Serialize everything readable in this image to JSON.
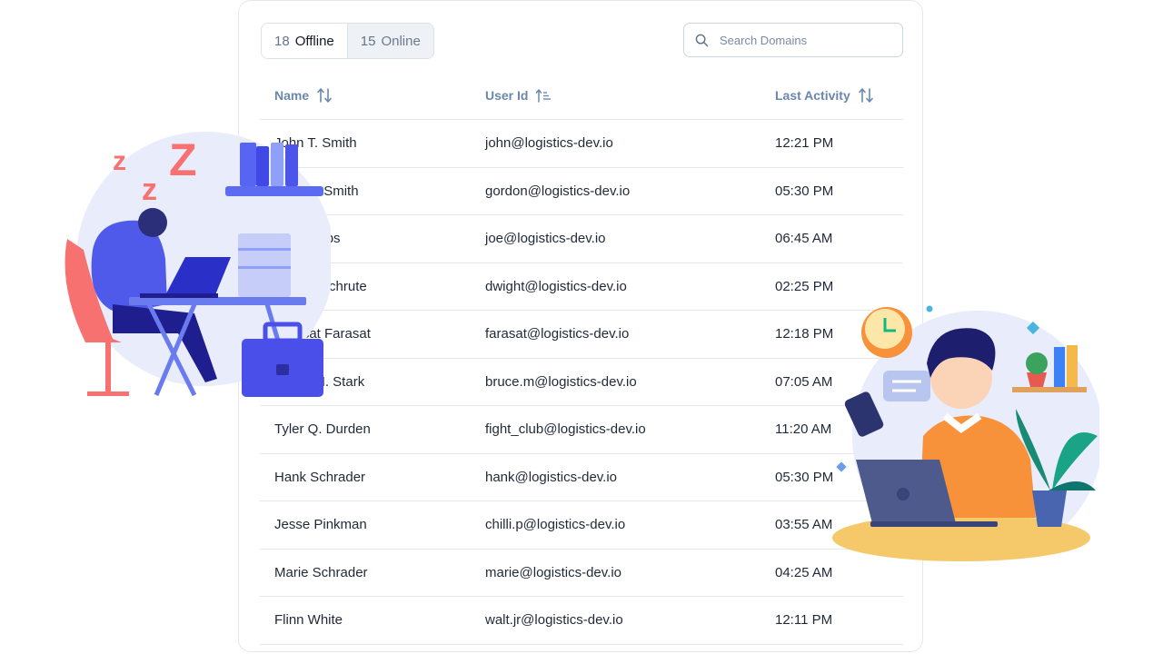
{
  "tabs": [
    {
      "count": "18",
      "label": "Offline",
      "active": true
    },
    {
      "count": "15",
      "label": "Online",
      "active": false
    }
  ],
  "search": {
    "placeholder": "Search Domains"
  },
  "columns": {
    "name": "Name",
    "user_id": "User Id",
    "last_activity": "Last Activity"
  },
  "rows": [
    {
      "name": "John T. Smith",
      "email": "john@logistics-dev.io",
      "time": "12:21 PM"
    },
    {
      "name": "Gordon Smith",
      "email": "gordon@logistics-dev.io",
      "time": "05:30 PM"
    },
    {
      "name": "Joe Philips",
      "email": "joe@logistics-dev.io",
      "time": "06:45 AM"
    },
    {
      "name": "Dwight Schrute",
      "email": "dwight@logistics-dev.io",
      "time": "02:25 PM"
    },
    {
      "name": "Farasat Farasat",
      "email": "farasat@logistics-dev.io",
      "time": "12:18 PM"
    },
    {
      "name": "Bruce M. Stark",
      "email": "bruce.m@logistics-dev.io",
      "time": "07:05 AM"
    },
    {
      "name": "Tyler Q. Durden",
      "email": "fight_club@logistics-dev.io",
      "time": "11:20 AM"
    },
    {
      "name": "Hank Schrader",
      "email": "hank@logistics-dev.io",
      "time": "05:30 PM"
    },
    {
      "name": "Jesse Pinkman",
      "email": "chilli.p@logistics-dev.io",
      "time": "03:55 AM"
    },
    {
      "name": "Marie Schrader",
      "email": "marie@logistics-dev.io",
      "time": "04:25 AM"
    },
    {
      "name": "Flinn White",
      "email": "walt.jr@logistics-dev.io",
      "time": "12:11 PM"
    }
  ],
  "illustrations": {
    "left": {
      "sleep_letters": [
        "z",
        "z",
        "Z"
      ]
    }
  },
  "colors": {
    "accent": "#4f46e5",
    "header_text": "#6b87ad",
    "sleep_z": "#f87171",
    "orange": "#f7923a"
  }
}
